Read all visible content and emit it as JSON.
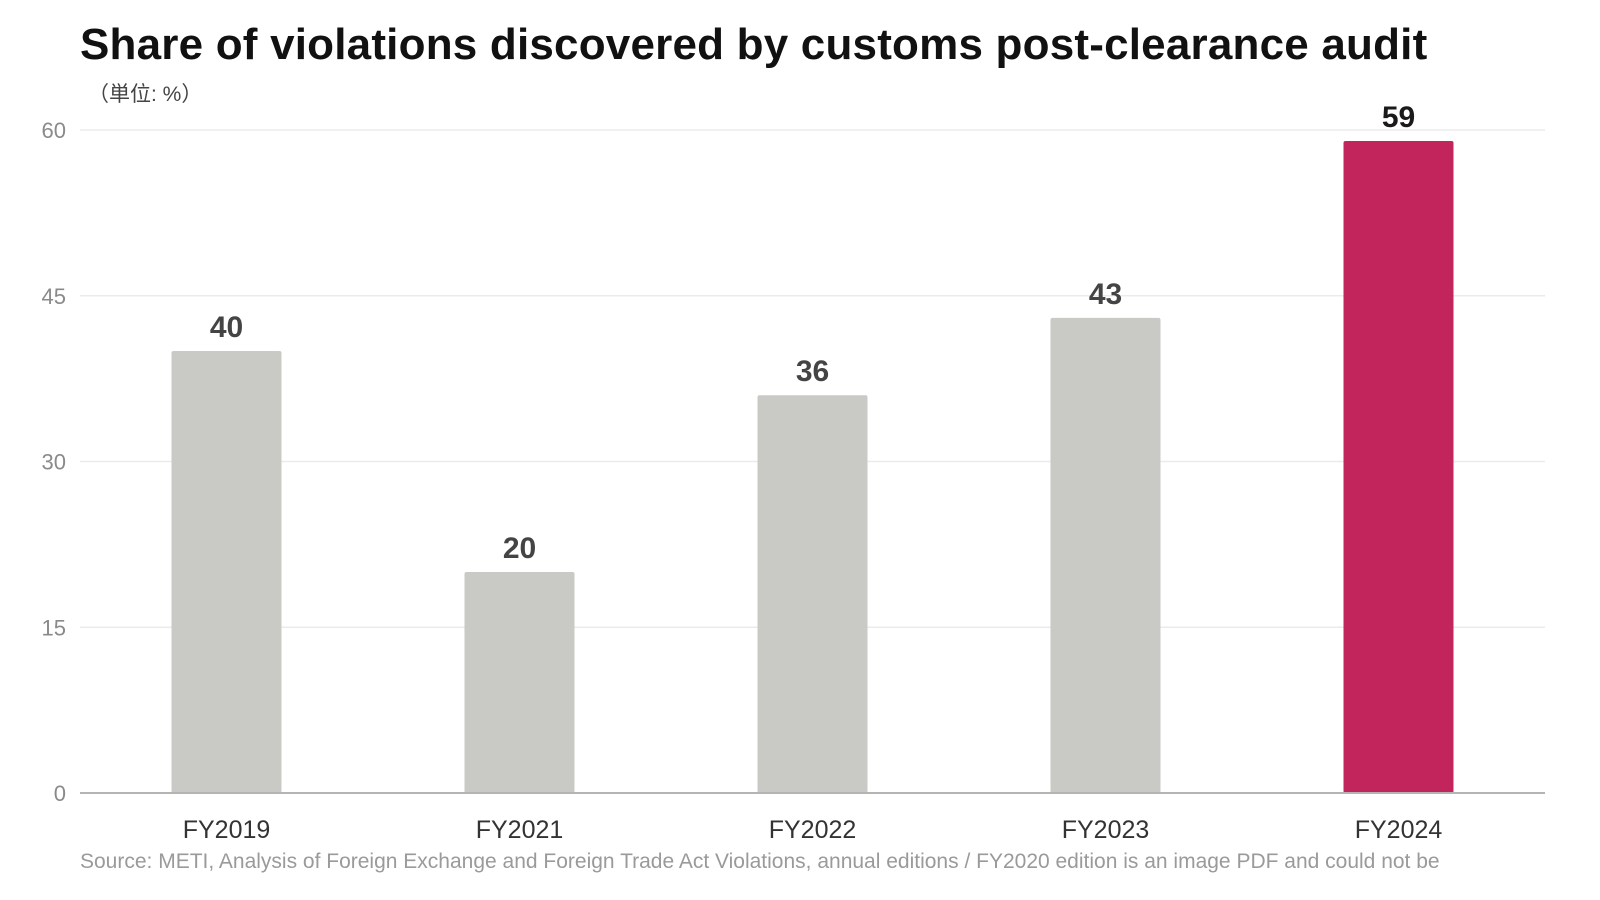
{
  "chart_data": {
    "type": "bar",
    "title": "Share of violations discovered by customs post-clearance audit",
    "unit_label": "（単位: %）",
    "categories": [
      "FY2019",
      "FY2021",
      "FY2022",
      "FY2023",
      "FY2024"
    ],
    "values": [
      40,
      20,
      36,
      43,
      59
    ],
    "ylim": [
      0,
      60
    ],
    "yticks": [
      0,
      15,
      30,
      45,
      60
    ],
    "grid": true,
    "colors": {
      "bar_default": "#c9c9c5",
      "bar_highlight": "#c2255c",
      "grid": "#ebebeb",
      "axis": "#b4b4b4"
    },
    "highlight_index": 4,
    "source": "Source: METI, Analysis of Foreign Exchange and Foreign Trade Act Violations, annual editions / FY2020 edition is an image PDF and could not be"
  }
}
